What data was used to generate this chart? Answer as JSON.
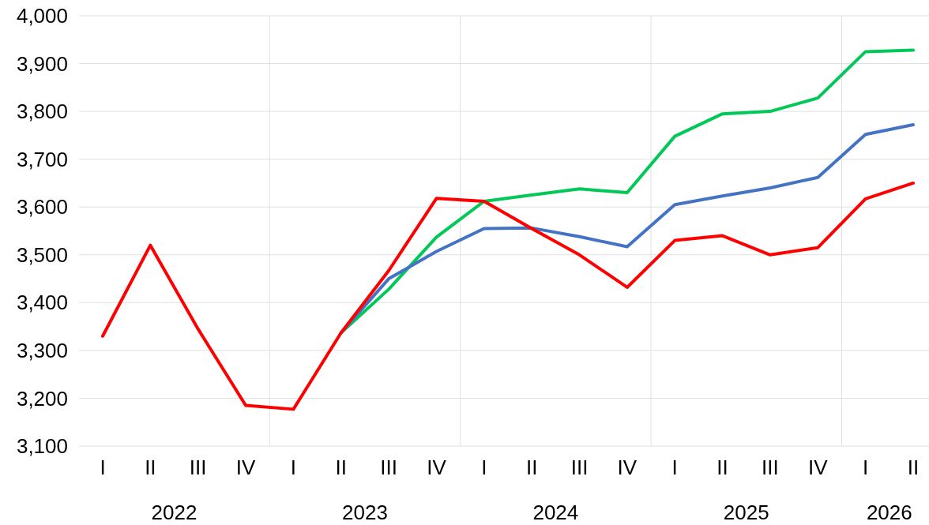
{
  "chart_data": {
    "type": "line",
    "categories": [
      "I",
      "II",
      "III",
      "IV",
      "I",
      "II",
      "III",
      "IV",
      "I",
      "II",
      "III",
      "IV",
      "I",
      "II",
      "III",
      "IV",
      "I",
      "II"
    ],
    "series": [
      {
        "color": "#00c957",
        "values": [
          null,
          null,
          null,
          null,
          null,
          3337,
          3428,
          3537,
          3612,
          3625,
          3638,
          3630,
          3748,
          3795,
          3800,
          3828,
          3925,
          3928
        ]
      },
      {
        "color": "#4472c4",
        "values": [
          null,
          null,
          null,
          null,
          null,
          3337,
          3450,
          3507,
          3555,
          3556,
          3538,
          3517,
          3605,
          3623,
          3640,
          3662,
          3752,
          3772
        ]
      },
      {
        "color": "#ff0000",
        "values": [
          3330,
          3520,
          3345,
          3185,
          3177,
          3337,
          3467,
          3618,
          3612,
          3555,
          3500,
          3432,
          3530,
          3540,
          3500,
          3515,
          3617,
          3650
        ]
      }
    ],
    "annotations": [
      "2022",
      "2023",
      "2024",
      "2025",
      "2026"
    ],
    "ylim": [
      3100,
      4000
    ],
    "yticks": [
      {
        "value": 3100,
        "label": "3,100"
      },
      {
        "value": 3200,
        "label": "3,200"
      },
      {
        "value": 3300,
        "label": "3,300"
      },
      {
        "value": 3400,
        "label": "3,400"
      },
      {
        "value": 3500,
        "label": "3,500"
      },
      {
        "value": 3600,
        "label": "3,600"
      },
      {
        "value": 3700,
        "label": "3,700"
      },
      {
        "value": 3800,
        "label": "3,800"
      },
      {
        "value": 3900,
        "label": "3,900"
      },
      {
        "value": 4000,
        "label": "4,000"
      }
    ],
    "grid": true,
    "line_style": "solid",
    "marker": "none"
  }
}
